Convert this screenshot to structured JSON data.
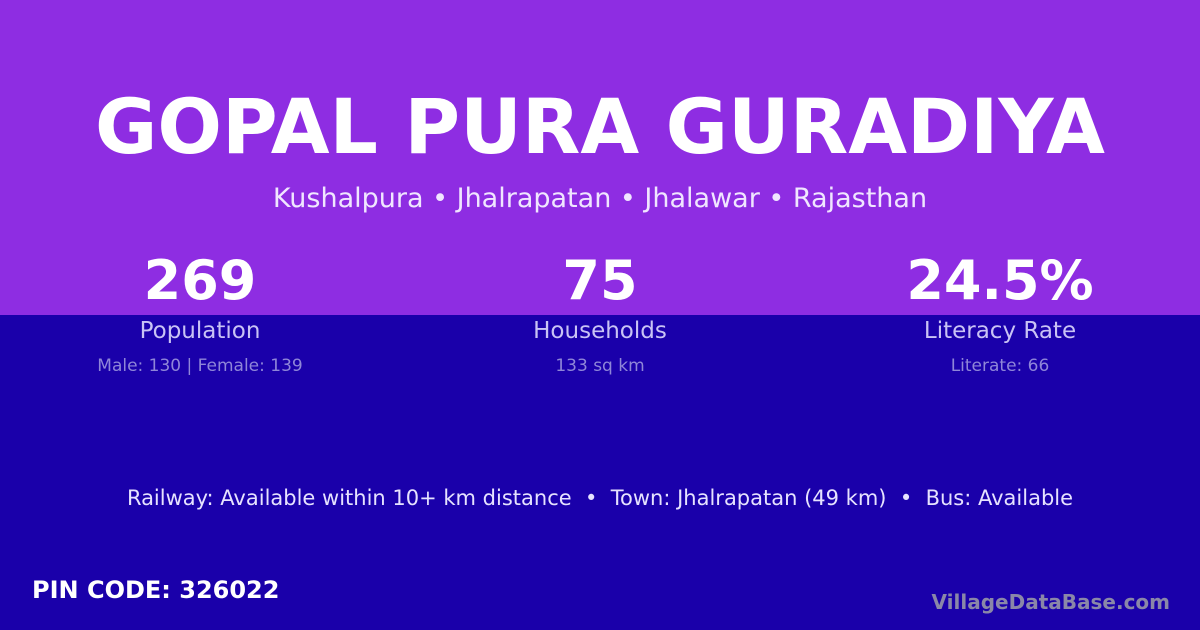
{
  "colors": {
    "top": "#8e2de2",
    "bottom": "#1a00aa"
  },
  "title": "GOPAL PURA GURADIYA",
  "subtitle": "Kushalpura • Jhalrapatan • Jhalawar • Rajasthan",
  "stats": [
    {
      "value": "269",
      "label": "Population",
      "detail": "Male: 130 | Female: 139"
    },
    {
      "value": "75",
      "label": "Households",
      "detail": "133 sq km"
    },
    {
      "value": "24.5%",
      "label": "Literacy Rate",
      "detail": "Literate: 66"
    }
  ],
  "info": "Railway: Available within 10+ km distance  •  Town: Jhalrapatan (49 km)  •  Bus: Available",
  "pin": "PIN CODE: 326022",
  "brand": "VillageDataBase.com"
}
